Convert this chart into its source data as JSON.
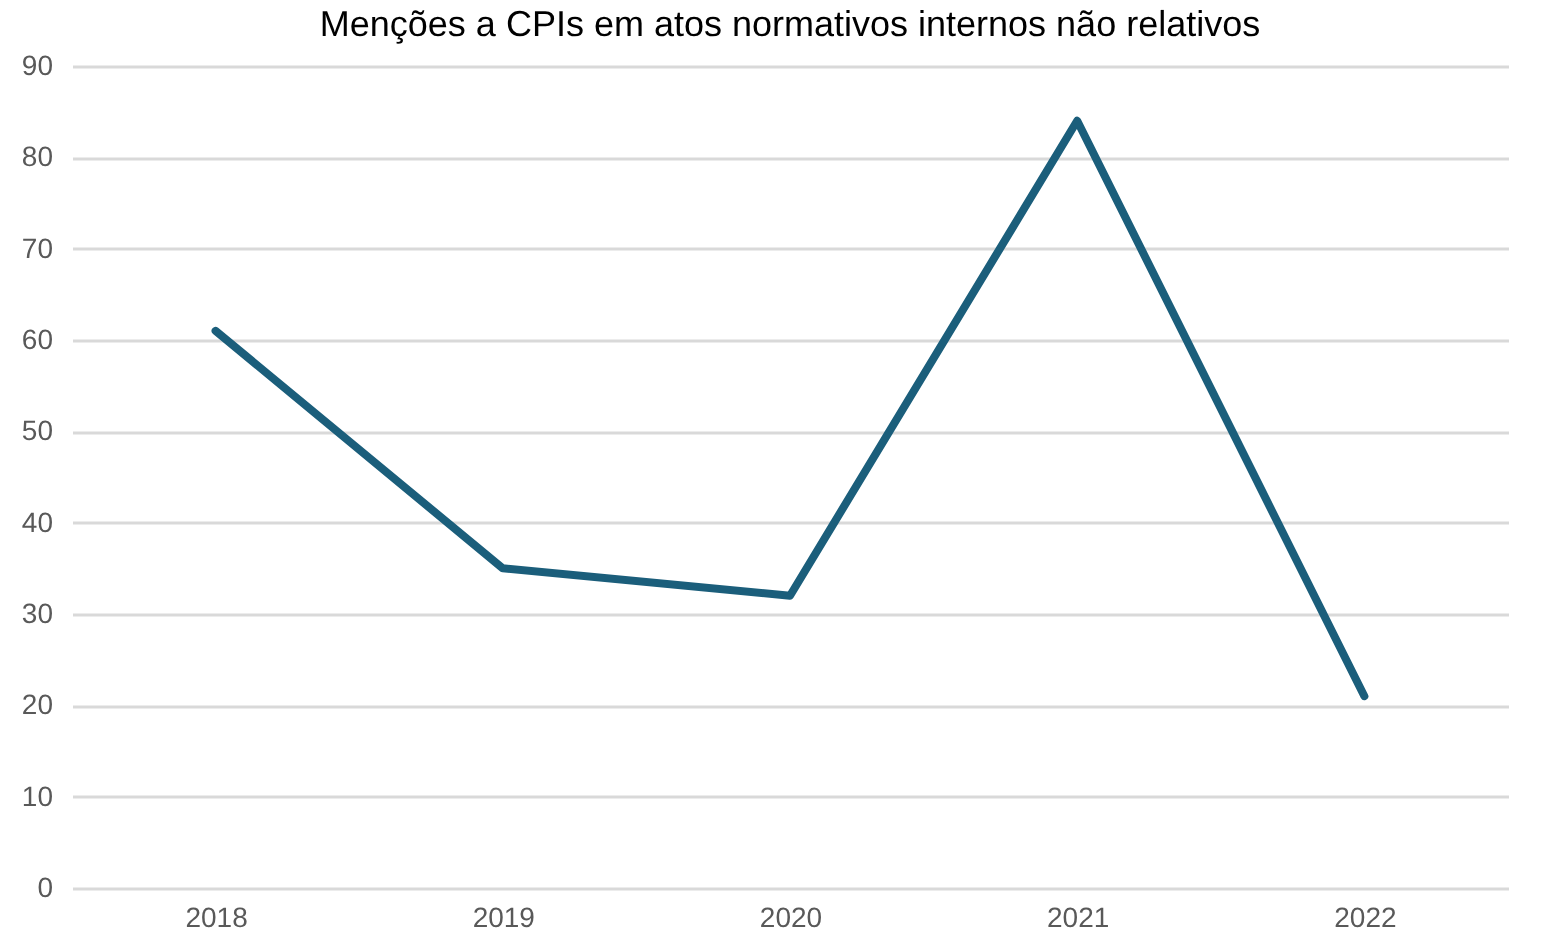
{
  "chart_data": {
    "type": "line",
    "title": "Menções a CPIs em atos normativos internos não relativos",
    "categories": [
      "2018",
      "2019",
      "2020",
      "2021",
      "2022"
    ],
    "series": [
      {
        "color": "#1b5e7b",
        "values": [
          61,
          35,
          32,
          84,
          21
        ]
      }
    ],
    "ylim": [
      0,
      90
    ],
    "yticks": [
      0,
      10,
      20,
      30,
      40,
      50,
      60,
      70,
      80,
      90
    ],
    "grid": "y",
    "marker": "none",
    "line_style": "solid"
  }
}
